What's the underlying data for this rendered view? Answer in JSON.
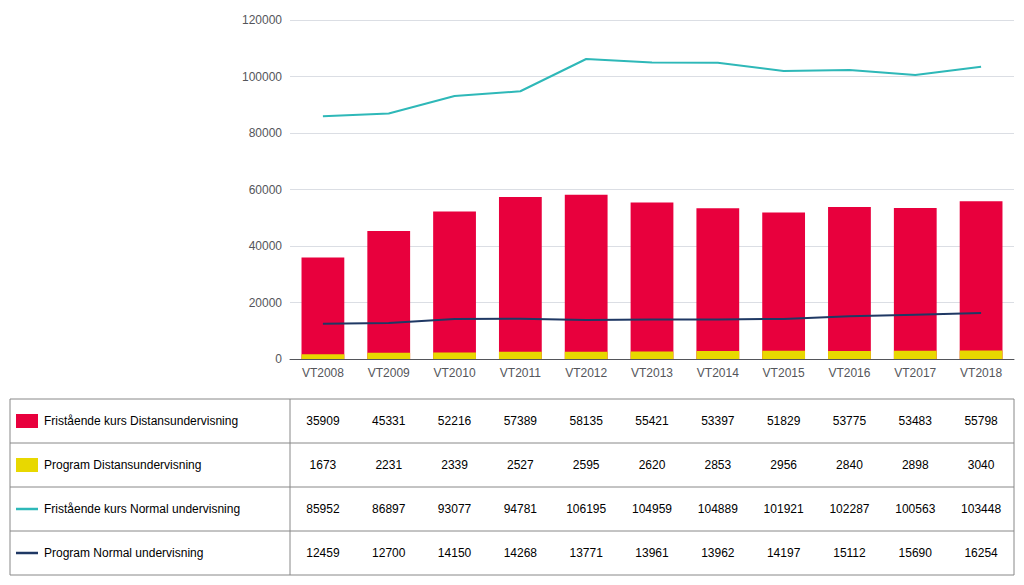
{
  "chart_data": {
    "type": "bar",
    "categories": [
      "VT2008",
      "VT2009",
      "VT2010",
      "VT2011",
      "VT2012",
      "VT2013",
      "VT2014",
      "VT2015",
      "VT2016",
      "VT2017",
      "VT2018"
    ],
    "series": [
      {
        "name": "Fristående kurs Distansundervisning",
        "type": "bar",
        "color": "#E8003D",
        "values": [
          35909,
          45331,
          52216,
          57389,
          58135,
          55421,
          53397,
          51829,
          53775,
          53483,
          55798
        ]
      },
      {
        "name": "Program Distansundervisning",
        "type": "bar",
        "color": "#E8D800",
        "values": [
          1673,
          2231,
          2339,
          2527,
          2595,
          2620,
          2853,
          2956,
          2840,
          2898,
          3040
        ]
      },
      {
        "name": "Fristående kurs Normal undervisning",
        "type": "line",
        "color": "#2EB8B8",
        "values": [
          85952,
          86897,
          93077,
          94781,
          106195,
          104959,
          104889,
          101921,
          102287,
          100563,
          103448
        ]
      },
      {
        "name": "Program Normal undervisning",
        "type": "line",
        "color": "#1F3864",
        "values": [
          12459,
          12700,
          14150,
          14268,
          13771,
          13961,
          13962,
          14197,
          15112,
          15690,
          16254
        ]
      }
    ],
    "ylim": [
      0,
      120000
    ],
    "yticks": [
      0,
      20000,
      40000,
      60000,
      80000,
      100000,
      120000
    ],
    "grid": true,
    "legend": "bottom"
  }
}
